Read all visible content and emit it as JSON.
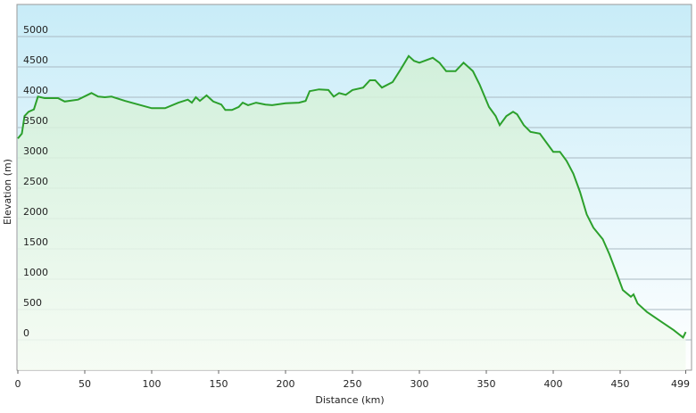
{
  "chart_data": {
    "type": "area",
    "x_label": "Distance  (km)",
    "y_label": "Elevation (m)",
    "x": [
      0,
      3,
      5,
      8,
      12,
      15,
      20,
      30,
      35,
      45,
      55,
      60,
      65,
      70,
      80,
      90,
      100,
      110,
      120,
      127,
      130,
      133,
      136,
      141,
      146,
      152,
      155,
      160,
      165,
      168,
      172,
      178,
      185,
      190,
      200,
      210,
      215,
      218,
      225,
      232,
      236,
      240,
      245,
      250,
      258,
      263,
      267,
      272,
      280,
      286,
      292,
      296,
      300,
      310,
      315,
      320,
      327,
      333,
      340,
      345,
      352,
      357,
      360,
      365,
      370,
      373,
      378,
      383,
      390,
      395,
      400,
      405,
      410,
      415,
      420,
      425,
      430,
      437,
      442,
      447,
      452,
      458,
      460,
      463,
      470,
      480,
      490,
      497,
      499
    ],
    "series": [
      {
        "name": "Elevation",
        "color": "#2ca02c",
        "values": [
          3320,
          3400,
          3690,
          3760,
          3800,
          4010,
          3985,
          3985,
          3930,
          3960,
          4070,
          4010,
          4000,
          4010,
          3940,
          3880,
          3820,
          3820,
          3910,
          3960,
          3910,
          4000,
          3940,
          4030,
          3930,
          3880,
          3790,
          3790,
          3840,
          3910,
          3870,
          3910,
          3880,
          3870,
          3900,
          3910,
          3940,
          4100,
          4130,
          4120,
          4010,
          4070,
          4040,
          4120,
          4160,
          4280,
          4280,
          4160,
          4250,
          4460,
          4680,
          4600,
          4570,
          4650,
          4570,
          4430,
          4430,
          4570,
          4430,
          4210,
          3840,
          3690,
          3540,
          3690,
          3760,
          3720,
          3540,
          3430,
          3400,
          3250,
          3100,
          3100,
          2950,
          2740,
          2440,
          2070,
          1850,
          1660,
          1410,
          1120,
          820,
          710,
          750,
          600,
          460,
          310,
          160,
          40,
          130
        ]
      }
    ],
    "xlim": [
      0,
      503
    ],
    "ylim": [
      -500,
      5530
    ],
    "xticks": [
      0,
      50,
      100,
      150,
      200,
      250,
      300,
      350,
      400,
      450,
      499
    ],
    "yticks": [
      0,
      500,
      1000,
      1500,
      2000,
      2500,
      3000,
      3500,
      4000,
      4500,
      5000
    ],
    "grid": true
  }
}
